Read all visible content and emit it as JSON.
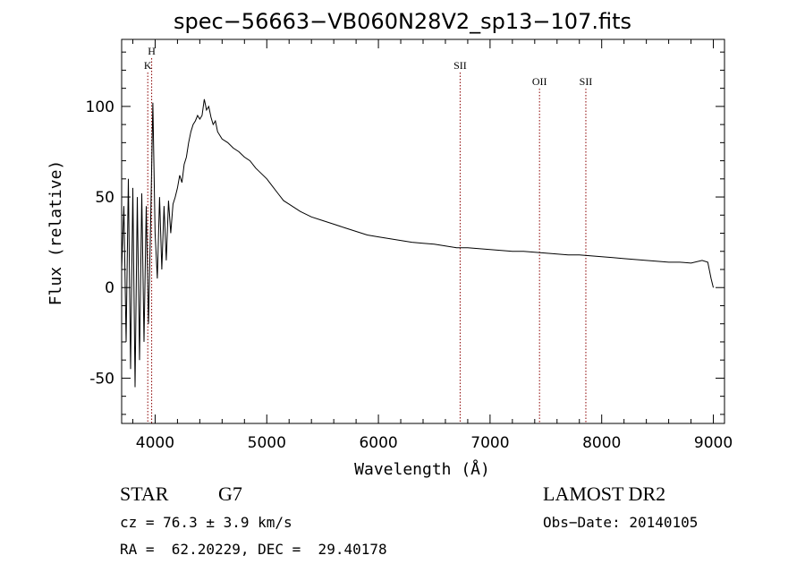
{
  "header": {
    "title": "spec−56663−VB060N28V2_sp13−107.fits"
  },
  "info": {
    "class_label": "STAR",
    "subclass": "G7",
    "survey": "LAMOST DR2",
    "cz": "cz = 76.3 ± 3.9 km/s",
    "obs_date": "Obs−Date: 20140105",
    "coords": "RA =  62.20229, DEC =  29.40178"
  },
  "chart_data": {
    "type": "line",
    "title": "spec−56663−VB060N28V2_sp13−107.fits",
    "xlabel": "Wavelength (Å)",
    "ylabel": "Flux (relative)",
    "xlim": [
      3700,
      9100
    ],
    "ylim": [
      -75,
      137
    ],
    "x_ticks": [
      4000,
      5000,
      6000,
      7000,
      8000,
      9000
    ],
    "y_ticks": [
      -50,
      0,
      50,
      100
    ],
    "grid": false,
    "line_color": "#000000",
    "marker_color": "#8b0000",
    "series": [
      {
        "x": [
          3700,
          3720,
          3740,
          3760,
          3780,
          3800,
          3820,
          3840,
          3860,
          3880,
          3900,
          3920,
          3940,
          3960,
          3980,
          4000,
          4020,
          4040,
          4060,
          4080,
          4100,
          4120,
          4140,
          4160,
          4180,
          4200,
          4220,
          4240,
          4260,
          4280,
          4300,
          4320,
          4340,
          4360,
          4380,
          4400,
          4420,
          4440,
          4460,
          4480,
          4500,
          4520,
          4540,
          4560,
          4580,
          4600,
          4650,
          4700,
          4750,
          4800,
          4850,
          4900,
          4950,
          5000,
          5050,
          5100,
          5150,
          5200,
          5300,
          5400,
          5500,
          5600,
          5700,
          5800,
          5900,
          6000,
          6100,
          6200,
          6300,
          6400,
          6500,
          6600,
          6700,
          6800,
          6900,
          7000,
          7100,
          7200,
          7300,
          7400,
          7500,
          7600,
          7700,
          7800,
          7900,
          8000,
          8100,
          8200,
          8300,
          8400,
          8500,
          8600,
          8700,
          8800,
          8900,
          8950,
          8980,
          9000
        ],
        "y": [
          10,
          45,
          -30,
          60,
          -45,
          55,
          -55,
          50,
          -40,
          52,
          -30,
          45,
          -20,
          38,
          102,
          30,
          5,
          50,
          10,
          45,
          15,
          48,
          30,
          46,
          50,
          55,
          62,
          58,
          68,
          72,
          80,
          86,
          90,
          92,
          95,
          93,
          95,
          104,
          98,
          100,
          94,
          90,
          92,
          86,
          84,
          82,
          80,
          77,
          75,
          72,
          70,
          66,
          63,
          60,
          56,
          52,
          48,
          46,
          42,
          39,
          37,
          35,
          33,
          31,
          29,
          28,
          27,
          26,
          25,
          24.5,
          24,
          23,
          22,
          22,
          21.5,
          21,
          20.5,
          20,
          20,
          19.5,
          19,
          18.5,
          18,
          18,
          17.5,
          17,
          16.5,
          16,
          15.5,
          15,
          14.5,
          14,
          14,
          13.5,
          15,
          14,
          5,
          0
        ]
      }
    ],
    "line_markers": [
      {
        "label": "H",
        "x": 3969,
        "level": "upper"
      },
      {
        "label": "K",
        "x": 3934,
        "level": "lower"
      },
      {
        "label": "SII",
        "x": 6732,
        "level": "lower"
      },
      {
        "label": "OII",
        "x": 7443,
        "level": "lowest"
      },
      {
        "label": "SII",
        "x": 7858,
        "level": "lowest"
      }
    ]
  }
}
